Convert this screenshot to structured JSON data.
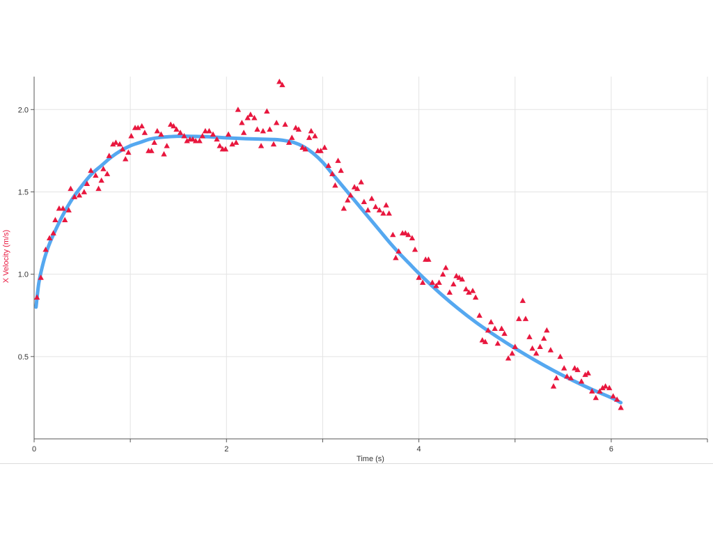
{
  "chart_data": {
    "type": "scatter",
    "xlabel": "Time (s)",
    "ylabel": "X Velocity (m/s)",
    "xlim": [
      0,
      7
    ],
    "ylim": [
      0,
      2.2
    ],
    "x_ticks": [
      0,
      2,
      4,
      6
    ],
    "x_tick_labels": [
      "0",
      "2",
      "4",
      "6"
    ],
    "x_minor_ticks": [
      1,
      3,
      5,
      7
    ],
    "y_ticks": [
      0.5,
      1.0,
      1.5,
      2.0
    ],
    "y_tick_labels": [
      "0.5",
      "1.0",
      "1.5",
      "2.0"
    ],
    "grid": true,
    "colors": {
      "points": "#e8173e",
      "fit": "#55a8f0",
      "ylabel": "#e8173e",
      "grid": "#e3e3e3",
      "axis": "#555555"
    },
    "series": [
      {
        "kind": "scatter",
        "marker": "triangle",
        "points": [
          [
            0.03,
            0.86
          ],
          [
            0.07,
            0.98
          ],
          [
            0.12,
            1.15
          ],
          [
            0.16,
            1.22
          ],
          [
            0.2,
            1.25
          ],
          [
            0.22,
            1.33
          ],
          [
            0.26,
            1.4
          ],
          [
            0.3,
            1.4
          ],
          [
            0.32,
            1.33
          ],
          [
            0.36,
            1.39
          ],
          [
            0.38,
            1.52
          ],
          [
            0.42,
            1.47
          ],
          [
            0.47,
            1.48
          ],
          [
            0.52,
            1.5
          ],
          [
            0.55,
            1.55
          ],
          [
            0.59,
            1.63
          ],
          [
            0.64,
            1.6
          ],
          [
            0.67,
            1.52
          ],
          [
            0.7,
            1.57
          ],
          [
            0.72,
            1.64
          ],
          [
            0.76,
            1.61
          ],
          [
            0.78,
            1.72
          ],
          [
            0.82,
            1.79
          ],
          [
            0.85,
            1.8
          ],
          [
            0.89,
            1.79
          ],
          [
            0.92,
            1.76
          ],
          [
            0.95,
            1.7
          ],
          [
            0.98,
            1.74
          ],
          [
            1.01,
            1.84
          ],
          [
            1.05,
            1.89
          ],
          [
            1.08,
            1.89
          ],
          [
            1.12,
            1.9
          ],
          [
            1.15,
            1.86
          ],
          [
            1.19,
            1.75
          ],
          [
            1.22,
            1.75
          ],
          [
            1.25,
            1.8
          ],
          [
            1.28,
            1.87
          ],
          [
            1.32,
            1.85
          ],
          [
            1.35,
            1.73
          ],
          [
            1.38,
            1.78
          ],
          [
            1.42,
            1.91
          ],
          [
            1.45,
            1.9
          ],
          [
            1.48,
            1.88
          ],
          [
            1.52,
            1.86
          ],
          [
            1.56,
            1.84
          ],
          [
            1.59,
            1.81
          ],
          [
            1.62,
            1.82
          ],
          [
            1.65,
            1.82
          ],
          [
            1.68,
            1.81
          ],
          [
            1.72,
            1.81
          ],
          [
            1.75,
            1.84
          ],
          [
            1.78,
            1.87
          ],
          [
            1.82,
            1.87
          ],
          [
            1.86,
            1.85
          ],
          [
            1.9,
            1.82
          ],
          [
            1.93,
            1.78
          ],
          [
            1.96,
            1.76
          ],
          [
            1.99,
            1.76
          ],
          [
            2.02,
            1.85
          ],
          [
            2.06,
            1.79
          ],
          [
            2.1,
            1.8
          ],
          [
            2.12,
            2.0
          ],
          [
            2.16,
            1.92
          ],
          [
            2.18,
            1.86
          ],
          [
            2.22,
            1.95
          ],
          [
            2.25,
            1.97
          ],
          [
            2.29,
            1.95
          ],
          [
            2.32,
            1.88
          ],
          [
            2.36,
            1.78
          ],
          [
            2.38,
            1.87
          ],
          [
            2.42,
            1.99
          ],
          [
            2.45,
            1.88
          ],
          [
            2.49,
            1.79
          ],
          [
            2.52,
            1.92
          ],
          [
            2.55,
            2.17
          ],
          [
            2.58,
            2.15
          ],
          [
            2.61,
            1.91
          ],
          [
            2.65,
            1.8
          ],
          [
            2.68,
            1.83
          ],
          [
            2.72,
            1.89
          ],
          [
            2.75,
            1.88
          ],
          [
            2.79,
            1.77
          ],
          [
            2.82,
            1.76
          ],
          [
            2.86,
            1.83
          ],
          [
            2.88,
            1.87
          ],
          [
            2.92,
            1.84
          ],
          [
            2.95,
            1.75
          ],
          [
            2.98,
            1.75
          ],
          [
            3.02,
            1.77
          ],
          [
            3.06,
            1.66
          ],
          [
            3.1,
            1.61
          ],
          [
            3.13,
            1.54
          ],
          [
            3.16,
            1.69
          ],
          [
            3.19,
            1.63
          ],
          [
            3.22,
            1.4
          ],
          [
            3.26,
            1.45
          ],
          [
            3.29,
            1.48
          ],
          [
            3.33,
            1.53
          ],
          [
            3.36,
            1.52
          ],
          [
            3.4,
            1.56
          ],
          [
            3.43,
            1.44
          ],
          [
            3.47,
            1.39
          ],
          [
            3.51,
            1.46
          ],
          [
            3.55,
            1.41
          ],
          [
            3.59,
            1.39
          ],
          [
            3.63,
            1.37
          ],
          [
            3.66,
            1.42
          ],
          [
            3.69,
            1.37
          ],
          [
            3.73,
            1.24
          ],
          [
            3.76,
            1.1
          ],
          [
            3.79,
            1.14
          ],
          [
            3.83,
            1.25
          ],
          [
            3.86,
            1.25
          ],
          [
            3.89,
            1.24
          ],
          [
            3.93,
            1.22
          ],
          [
            3.96,
            1.15
          ],
          [
            4.0,
            0.98
          ],
          [
            4.04,
            0.95
          ],
          [
            4.07,
            1.09
          ],
          [
            4.1,
            1.09
          ],
          [
            4.14,
            0.95
          ],
          [
            4.18,
            0.93
          ],
          [
            4.21,
            0.95
          ],
          [
            4.25,
            1.0
          ],
          [
            4.28,
            1.04
          ],
          [
            4.32,
            0.89
          ],
          [
            4.36,
            0.94
          ],
          [
            4.39,
            0.99
          ],
          [
            4.42,
            0.98
          ],
          [
            4.45,
            0.97
          ],
          [
            4.49,
            0.91
          ],
          [
            4.52,
            0.89
          ],
          [
            4.56,
            0.9
          ],
          [
            4.59,
            0.86
          ],
          [
            4.63,
            0.75
          ],
          [
            4.66,
            0.6
          ],
          [
            4.69,
            0.59
          ],
          [
            4.72,
            0.66
          ],
          [
            4.75,
            0.71
          ],
          [
            4.79,
            0.67
          ],
          [
            4.82,
            0.58
          ],
          [
            4.86,
            0.67
          ],
          [
            4.89,
            0.64
          ],
          [
            4.93,
            0.49
          ],
          [
            4.97,
            0.52
          ],
          [
            5.0,
            0.56
          ],
          [
            5.04,
            0.73
          ],
          [
            5.08,
            0.84
          ],
          [
            5.11,
            0.73
          ],
          [
            5.15,
            0.62
          ],
          [
            5.18,
            0.55
          ],
          [
            5.22,
            0.52
          ],
          [
            5.26,
            0.56
          ],
          [
            5.3,
            0.61
          ],
          [
            5.33,
            0.66
          ],
          [
            5.37,
            0.54
          ],
          [
            5.4,
            0.32
          ],
          [
            5.43,
            0.37
          ],
          [
            5.47,
            0.5
          ],
          [
            5.51,
            0.43
          ],
          [
            5.54,
            0.38
          ],
          [
            5.58,
            0.37
          ],
          [
            5.62,
            0.43
          ],
          [
            5.65,
            0.42
          ],
          [
            5.69,
            0.35
          ],
          [
            5.73,
            0.39
          ],
          [
            5.76,
            0.4
          ],
          [
            5.8,
            0.29
          ],
          [
            5.84,
            0.25
          ],
          [
            5.88,
            0.29
          ],
          [
            5.91,
            0.31
          ],
          [
            5.94,
            0.32
          ],
          [
            5.98,
            0.31
          ],
          [
            6.02,
            0.26
          ],
          [
            6.06,
            0.24
          ],
          [
            6.1,
            0.19
          ]
        ]
      },
      {
        "kind": "line",
        "points": [
          [
            0.02,
            0.8
          ],
          [
            0.05,
            0.95
          ],
          [
            0.1,
            1.08
          ],
          [
            0.15,
            1.17
          ],
          [
            0.2,
            1.24
          ],
          [
            0.3,
            1.36
          ],
          [
            0.4,
            1.46
          ],
          [
            0.5,
            1.54
          ],
          [
            0.6,
            1.61
          ],
          [
            0.7,
            1.66
          ],
          [
            0.8,
            1.71
          ],
          [
            0.9,
            1.75
          ],
          [
            1.0,
            1.78
          ],
          [
            1.1,
            1.8
          ],
          [
            1.2,
            1.82
          ],
          [
            1.3,
            1.83
          ],
          [
            1.4,
            1.835
          ],
          [
            1.5,
            1.838
          ],
          [
            1.6,
            1.838
          ],
          [
            1.8,
            1.835
          ],
          [
            2.0,
            1.828
          ],
          [
            2.2,
            1.823
          ],
          [
            2.4,
            1.82
          ],
          [
            2.5,
            1.818
          ],
          [
            2.6,
            1.812
          ],
          [
            2.7,
            1.8
          ],
          [
            2.8,
            1.775
          ],
          [
            2.9,
            1.735
          ],
          [
            3.0,
            1.68
          ],
          [
            3.1,
            1.61
          ],
          [
            3.2,
            1.54
          ],
          [
            3.3,
            1.47
          ],
          [
            3.4,
            1.4
          ],
          [
            3.5,
            1.33
          ],
          [
            3.6,
            1.26
          ],
          [
            3.7,
            1.19
          ],
          [
            3.8,
            1.125
          ],
          [
            3.9,
            1.065
          ],
          [
            4.0,
            1.005
          ],
          [
            4.2,
            0.895
          ],
          [
            4.4,
            0.795
          ],
          [
            4.6,
            0.705
          ],
          [
            4.8,
            0.625
          ],
          [
            5.0,
            0.55
          ],
          [
            5.2,
            0.48
          ],
          [
            5.4,
            0.415
          ],
          [
            5.6,
            0.355
          ],
          [
            5.8,
            0.3
          ],
          [
            6.0,
            0.25
          ],
          [
            6.1,
            0.22
          ]
        ]
      }
    ]
  }
}
